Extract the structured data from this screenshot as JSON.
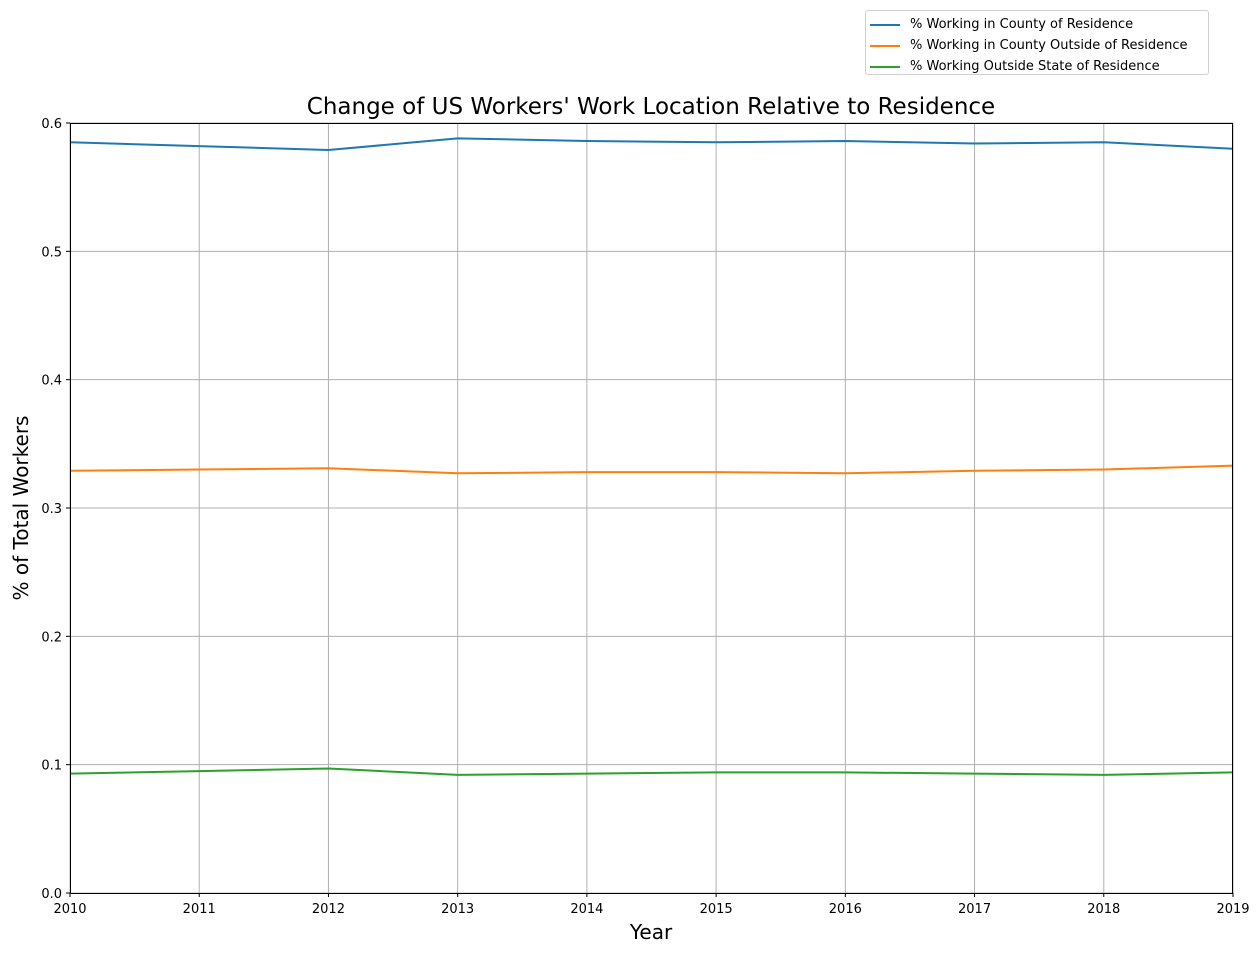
{
  "colors": {
    "series": [
      "#1f77b4",
      "#ff7f0e",
      "#2ca02c"
    ],
    "grid": "#b0b0b0",
    "axis": "#000000"
  },
  "chart_data": {
    "type": "line",
    "title": "Change of US Workers' Work Location Relative to Residence",
    "xlabel": "Year",
    "ylabel": "% of Total Workers",
    "x": [
      2010,
      2011,
      2012,
      2013,
      2014,
      2015,
      2016,
      2017,
      2018,
      2019
    ],
    "xticks": [
      "2010",
      "2011",
      "2012",
      "2013",
      "2014",
      "2015",
      "2016",
      "2017",
      "2018",
      "2019"
    ],
    "yticks": [
      "0.0",
      "0.1",
      "0.2",
      "0.3",
      "0.4",
      "0.5",
      "0.6"
    ],
    "xlim": [
      2010,
      2019
    ],
    "ylim": [
      0.0,
      0.6
    ],
    "grid": true,
    "legend_position": "top-right, above plot",
    "series": [
      {
        "name": "% Working in County of Residence",
        "values": [
          0.585,
          0.582,
          0.579,
          0.588,
          0.586,
          0.585,
          0.586,
          0.584,
          0.585,
          0.58
        ]
      },
      {
        "name": "% Working in County Outside of Residence",
        "values": [
          0.329,
          0.33,
          0.331,
          0.327,
          0.328,
          0.328,
          0.327,
          0.329,
          0.33,
          0.333
        ]
      },
      {
        "name": "% Working Outside State of Residence",
        "values": [
          0.093,
          0.095,
          0.097,
          0.092,
          0.093,
          0.094,
          0.094,
          0.093,
          0.092,
          0.094
        ]
      }
    ]
  }
}
